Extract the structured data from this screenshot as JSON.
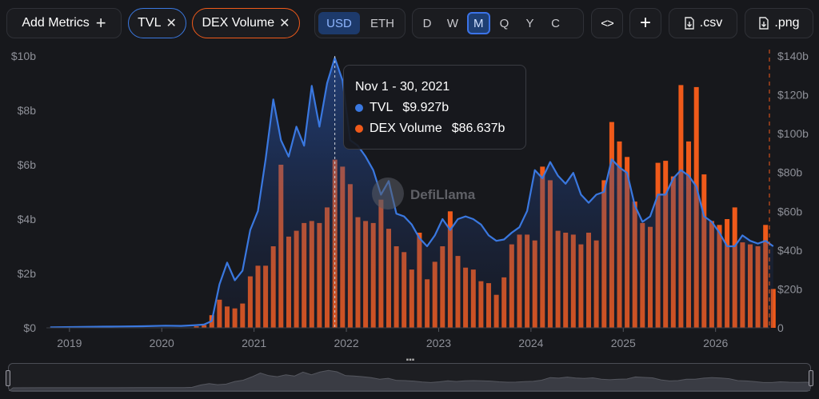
{
  "toolbar": {
    "add_metrics_label": "Add Metrics",
    "add_icon": "plus-icon",
    "metrics": [
      {
        "label": "TVL",
        "color": "#3a78e0"
      },
      {
        "label": "DEX Volume",
        "color": "#f05a1a"
      }
    ],
    "remove_icon": "close-icon",
    "currency": {
      "options": [
        "USD",
        "ETH"
      ],
      "selected": "USD"
    },
    "granularity": {
      "options": [
        "D",
        "W",
        "M",
        "Q",
        "Y",
        "C"
      ],
      "selected": "M"
    },
    "embed_icon": "code-icon",
    "csv_label": ".csv",
    "png_label": ".png",
    "download_icon": "download-file-icon"
  },
  "tooltip": {
    "date": "Nov 1 - 30, 2021",
    "rows": [
      {
        "name": "TVL",
        "value": "$9.927b",
        "color": "#3a78e0"
      },
      {
        "name": "DEX Volume",
        "value": "$86.637b",
        "color": "#f05a1a"
      }
    ]
  },
  "watermark": "DefiLlama",
  "chart_data": {
    "type": "bar+area",
    "series": [
      {
        "name": "TVL",
        "type": "area",
        "axis": "left",
        "color": "#3a78e0",
        "unit": "USD billions",
        "points": [
          [
            "2018-10",
            0.02
          ],
          [
            "2019-01",
            0.03
          ],
          [
            "2019-04",
            0.04
          ],
          [
            "2019-07",
            0.05
          ],
          [
            "2019-10",
            0.06
          ],
          [
            "2020-01",
            0.08
          ],
          [
            "2020-03",
            0.07
          ],
          [
            "2020-05",
            0.1
          ],
          [
            "2020-06",
            0.12
          ],
          [
            "2020-07",
            0.25
          ],
          [
            "2020-08",
            1.6
          ],
          [
            "2020-09",
            2.4
          ],
          [
            "2020-10",
            1.75
          ],
          [
            "2020-11",
            2.1
          ],
          [
            "2020-12",
            3.6
          ],
          [
            "2021-01",
            4.3
          ],
          [
            "2021-02",
            6.2
          ],
          [
            "2021-03",
            8.4
          ],
          [
            "2021-04",
            6.9
          ],
          [
            "2021-05",
            6.3
          ],
          [
            "2021-06",
            7.4
          ],
          [
            "2021-07",
            6.7
          ],
          [
            "2021-08",
            8.9
          ],
          [
            "2021-09",
            7.4
          ],
          [
            "2021-10",
            9.0
          ],
          [
            "2021-11",
            9.93
          ],
          [
            "2021-12",
            9.1
          ],
          [
            "2022-01",
            6.9
          ],
          [
            "2022-02",
            6.7
          ],
          [
            "2022-03",
            6.3
          ],
          [
            "2022-04",
            5.8
          ],
          [
            "2022-05",
            4.9
          ],
          [
            "2022-06",
            5.4
          ],
          [
            "2022-07",
            4.2
          ],
          [
            "2022-08",
            4.1
          ],
          [
            "2022-09",
            3.8
          ],
          [
            "2022-10",
            3.3
          ],
          [
            "2022-11",
            3.0
          ],
          [
            "2022-12",
            3.4
          ],
          [
            "2023-01",
            4.0
          ],
          [
            "2023-02",
            3.6
          ],
          [
            "2023-03",
            4.0
          ],
          [
            "2023-04",
            4.1
          ],
          [
            "2023-05",
            4.0
          ],
          [
            "2023-06",
            3.8
          ],
          [
            "2023-07",
            3.4
          ],
          [
            "2023-08",
            3.2
          ],
          [
            "2023-09",
            3.25
          ],
          [
            "2023-10",
            3.5
          ],
          [
            "2023-11",
            3.7
          ],
          [
            "2023-12",
            4.3
          ],
          [
            "2024-01",
            5.8
          ],
          [
            "2024-02",
            5.5
          ],
          [
            "2024-03",
            6.1
          ],
          [
            "2024-04",
            5.6
          ],
          [
            "2024-05",
            5.3
          ],
          [
            "2024-06",
            5.7
          ],
          [
            "2024-07",
            4.9
          ],
          [
            "2024-08",
            4.6
          ],
          [
            "2024-09",
            4.9
          ],
          [
            "2024-10",
            5.0
          ],
          [
            "2024-11",
            6.2
          ],
          [
            "2024-12",
            5.9
          ],
          [
            "2025-01",
            5.7
          ],
          [
            "2025-02",
            4.5
          ],
          [
            "2025-03",
            3.9
          ],
          [
            "2025-04",
            4.1
          ],
          [
            "2025-05",
            4.9
          ],
          [
            "2025-06",
            4.9
          ],
          [
            "2025-07",
            5.5
          ],
          [
            "2025-08",
            5.8
          ],
          [
            "2025-09",
            5.6
          ],
          [
            "2025-10",
            5.2
          ],
          [
            "2025-11",
            4.1
          ],
          [
            "2025-12",
            3.9
          ],
          [
            "2026-01",
            3.5
          ],
          [
            "2026-02",
            3.0
          ],
          [
            "2026-03",
            3.0
          ],
          [
            "2026-04",
            3.4
          ],
          [
            "2026-05",
            3.2
          ],
          [
            "2026-06",
            3.1
          ],
          [
            "2026-07",
            3.2
          ],
          [
            "2026-08",
            3.0
          ]
        ]
      },
      {
        "name": "DEX Volume",
        "type": "bar",
        "axis": "right",
        "color": "#f05a1a",
        "unit": "USD billions",
        "points": [
          [
            "2020-05",
            0.8
          ],
          [
            "2020-06",
            1.5
          ],
          [
            "2020-07",
            6.5
          ],
          [
            "2020-08",
            14.5
          ],
          [
            "2020-09",
            11.0
          ],
          [
            "2020-10",
            10.0
          ],
          [
            "2020-11",
            12.5
          ],
          [
            "2020-12",
            26.5
          ],
          [
            "2021-01",
            32.0
          ],
          [
            "2021-02",
            32.0
          ],
          [
            "2021-03",
            42.0
          ],
          [
            "2021-04",
            84.0
          ],
          [
            "2021-05",
            47.0
          ],
          [
            "2021-06",
            50.0
          ],
          [
            "2021-07",
            54.0
          ],
          [
            "2021-08",
            55.0
          ],
          [
            "2021-09",
            54.0
          ],
          [
            "2021-10",
            62.0
          ],
          [
            "2021-11",
            86.64
          ],
          [
            "2021-12",
            83.0
          ],
          [
            "2022-01",
            74.0
          ],
          [
            "2022-02",
            57.0
          ],
          [
            "2022-03",
            55.0
          ],
          [
            "2022-04",
            54.0
          ],
          [
            "2022-05",
            66.0
          ],
          [
            "2022-06",
            51.0
          ],
          [
            "2022-07",
            42.0
          ],
          [
            "2022-08",
            39.0
          ],
          [
            "2022-09",
            30.0
          ],
          [
            "2022-10",
            49.0
          ],
          [
            "2022-11",
            25.0
          ],
          [
            "2022-12",
            34.0
          ],
          [
            "2023-01",
            42.0
          ],
          [
            "2023-02",
            60.0
          ],
          [
            "2023-03",
            37.0
          ],
          [
            "2023-04",
            31.0
          ],
          [
            "2023-05",
            30.0
          ],
          [
            "2023-06",
            24.0
          ],
          [
            "2023-07",
            23.0
          ],
          [
            "2023-08",
            17.0
          ],
          [
            "2023-09",
            26.0
          ],
          [
            "2023-10",
            43.0
          ],
          [
            "2023-11",
            48.0
          ],
          [
            "2023-12",
            48.0
          ],
          [
            "2024-01",
            45.0
          ],
          [
            "2024-02",
            83.0
          ],
          [
            "2024-03",
            76.0
          ],
          [
            "2024-04",
            50.0
          ],
          [
            "2024-05",
            49.0
          ],
          [
            "2024-06",
            48.0
          ],
          [
            "2024-07",
            43.0
          ],
          [
            "2024-08",
            49.0
          ],
          [
            "2024-09",
            45.0
          ],
          [
            "2024-10",
            76.0
          ],
          [
            "2024-11",
            106.0
          ],
          [
            "2024-12",
            96.0
          ],
          [
            "2025-01",
            88.0
          ],
          [
            "2025-02",
            65.0
          ],
          [
            "2025-03",
            54.0
          ],
          [
            "2025-04",
            52.0
          ],
          [
            "2025-05",
            85.0
          ],
          [
            "2025-06",
            86.0
          ],
          [
            "2025-07",
            78.0
          ],
          [
            "2025-08",
            125.0
          ],
          [
            "2025-09",
            96.0
          ],
          [
            "2025-10",
            124.0
          ],
          [
            "2025-11",
            79.0
          ],
          [
            "2025-12",
            55.0
          ],
          [
            "2026-01",
            53.0
          ],
          [
            "2026-02",
            56.0
          ],
          [
            "2026-03",
            62.0
          ],
          [
            "2026-04",
            44.0
          ],
          [
            "2026-05",
            43.0
          ],
          [
            "2026-06",
            42.0
          ],
          [
            "2026-07",
            53.0
          ],
          [
            "2026-08",
            20.0
          ]
        ]
      }
    ],
    "x_ticks": [
      "2019",
      "2020",
      "2021",
      "2022",
      "2023",
      "2024",
      "2025",
      "2026"
    ],
    "y_left": {
      "ticks": [
        "$0",
        "$2b",
        "$4b",
        "$6b",
        "$8b",
        "$10b"
      ],
      "values": [
        0,
        2,
        4,
        6,
        8,
        10
      ],
      "range": [
        0,
        10
      ]
    },
    "y_right": {
      "ticks": [
        "0",
        "$20b",
        "$40b",
        "$60b",
        "$80b",
        "$100b",
        "$120b",
        "$140b"
      ],
      "values": [
        0,
        20,
        40,
        60,
        80,
        100,
        120,
        140
      ],
      "range": [
        0,
        140
      ]
    },
    "x_range": [
      "2018-10",
      "2026-08"
    ],
    "hover_month": "2021-11",
    "grid": false,
    "legend": "none"
  }
}
